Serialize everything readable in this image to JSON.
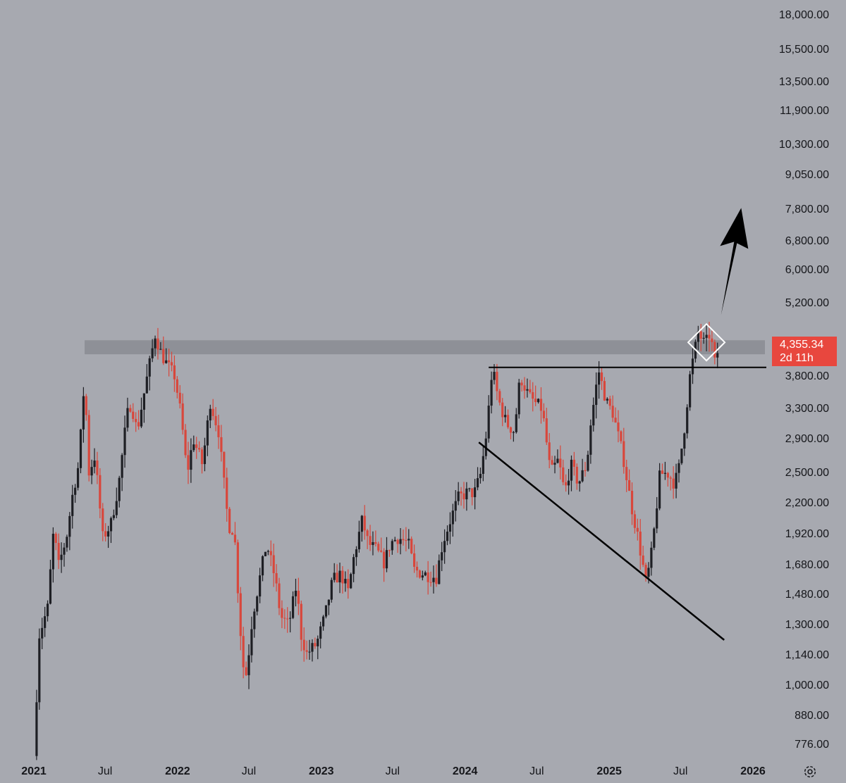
{
  "chart_data": {
    "type": "candlestick",
    "yscale": "log",
    "ylim": [
      720,
      19500
    ],
    "xlim": [
      "2021-01-01",
      "2026-01-20"
    ],
    "yticks": [
      18000,
      15500,
      13500,
      11900,
      10300,
      9050,
      7800,
      6800,
      6000,
      5200,
      3800,
      3300,
      2900,
      2500,
      2200,
      1920,
      1680,
      1480,
      1300,
      1140,
      1000,
      880,
      776
    ],
    "ytick_labels": [
      "18,000.00",
      "15,500.00",
      "13,500.00",
      "11,900.00",
      "10,300.00",
      "9,050.00",
      "7,800.00",
      "6,800.00",
      "6,000.00",
      "5,200.00",
      "3,800.00",
      "3,300.00",
      "2,900.00",
      "2,500.00",
      "2,200.00",
      "1,920.00",
      "1,680.00",
      "1,480.00",
      "1,300.00",
      "1,140.00",
      "1,000.00",
      "880.00",
      "776.00"
    ],
    "xticks": [
      {
        "date": "2021-01-01",
        "label": "2021",
        "year": true
      },
      {
        "date": "2021-07-01",
        "label": "Jul",
        "year": false
      },
      {
        "date": "2022-01-01",
        "label": "2022",
        "year": true
      },
      {
        "date": "2022-07-01",
        "label": "Jul",
        "year": false
      },
      {
        "date": "2023-01-01",
        "label": "2023",
        "year": true
      },
      {
        "date": "2023-07-01",
        "label": "Jul",
        "year": false
      },
      {
        "date": "2024-01-01",
        "label": "2024",
        "year": true
      },
      {
        "date": "2024-07-01",
        "label": "Jul",
        "year": false
      },
      {
        "date": "2025-01-01",
        "label": "2025",
        "year": true
      },
      {
        "date": "2025-07-01",
        "label": "Jul",
        "year": false
      },
      {
        "date": "2026-01-01",
        "label": "2026",
        "year": true
      }
    ],
    "close_path": [
      [
        "2021-01-01",
        740
      ],
      [
        "2021-01-15",
        1250
      ],
      [
        "2021-02-05",
        1400
      ],
      [
        "2021-02-20",
        1950
      ],
      [
        "2021-03-05",
        1680
      ],
      [
        "2021-03-25",
        1900
      ],
      [
        "2021-04-10",
        2300
      ],
      [
        "2021-04-25",
        2600
      ],
      [
        "2021-05-10",
        3800
      ],
      [
        "2021-05-20",
        2500
      ],
      [
        "2021-06-05",
        2700
      ],
      [
        "2021-06-25",
        1900
      ],
      [
        "2021-07-15",
        2000
      ],
      [
        "2021-08-05",
        2400
      ],
      [
        "2021-08-25",
        3200
      ],
      [
        "2021-09-05",
        3400
      ],
      [
        "2021-09-20",
        3000
      ],
      [
        "2021-10-10",
        3600
      ],
      [
        "2021-11-05",
        4550
      ],
      [
        "2021-11-20",
        4200
      ],
      [
        "2021-12-05",
        4000
      ],
      [
        "2021-12-25",
        3800
      ],
      [
        "2022-01-10",
        3200
      ],
      [
        "2022-01-25",
        2500
      ],
      [
        "2022-02-10",
        2900
      ],
      [
        "2022-03-05",
        2600
      ],
      [
        "2022-03-25",
        3400
      ],
      [
        "2022-04-15",
        3000
      ],
      [
        "2022-05-10",
        2000
      ],
      [
        "2022-05-25",
        1950
      ],
      [
        "2022-06-15",
        1100
      ],
      [
        "2022-06-25",
        1050
      ],
      [
        "2022-07-10",
        1350
      ],
      [
        "2022-08-05",
        1700
      ],
      [
        "2022-08-15",
        1850
      ],
      [
        "2022-09-05",
        1600
      ],
      [
        "2022-09-20",
        1350
      ],
      [
        "2022-10-10",
        1300
      ],
      [
        "2022-10-30",
        1550
      ],
      [
        "2022-11-10",
        1250
      ],
      [
        "2022-11-25",
        1150
      ],
      [
        "2022-12-20",
        1200
      ],
      [
        "2023-01-10",
        1350
      ],
      [
        "2023-01-30",
        1580
      ],
      [
        "2023-02-20",
        1620
      ],
      [
        "2023-03-10",
        1500
      ],
      [
        "2023-03-25",
        1750
      ],
      [
        "2023-04-15",
        2050
      ],
      [
        "2023-04-30",
        1850
      ],
      [
        "2023-05-20",
        1800
      ],
      [
        "2023-06-10",
        1700
      ],
      [
        "2023-06-25",
        1850
      ],
      [
        "2023-07-15",
        1900
      ],
      [
        "2023-08-10",
        1850
      ],
      [
        "2023-08-25",
        1650
      ],
      [
        "2023-09-20",
        1620
      ],
      [
        "2023-10-20",
        1600
      ],
      [
        "2023-11-05",
        1850
      ],
      [
        "2023-11-25",
        2050
      ],
      [
        "2023-12-15",
        2250
      ],
      [
        "2024-01-05",
        2300
      ],
      [
        "2024-01-25",
        2300
      ],
      [
        "2024-02-10",
        2500
      ],
      [
        "2024-02-25",
        3000
      ],
      [
        "2024-03-10",
        3950
      ],
      [
        "2024-03-25",
        3450
      ],
      [
        "2024-04-15",
        3100
      ],
      [
        "2024-05-05",
        3000
      ],
      [
        "2024-05-20",
        3800
      ],
      [
        "2024-06-10",
        3500
      ],
      [
        "2024-06-25",
        3400
      ],
      [
        "2024-07-15",
        3300
      ],
      [
        "2024-08-05",
        2500
      ],
      [
        "2024-08-25",
        2650
      ],
      [
        "2024-09-10",
        2300
      ],
      [
        "2024-09-25",
        2600
      ],
      [
        "2024-10-15",
        2400
      ],
      [
        "2024-11-05",
        2600
      ],
      [
        "2024-11-15",
        3100
      ],
      [
        "2024-12-05",
        3900
      ],
      [
        "2024-12-25",
        3400
      ],
      [
        "2025-01-10",
        3250
      ],
      [
        "2025-02-05",
        2700
      ],
      [
        "2025-02-25",
        2200
      ],
      [
        "2025-03-15",
        1900
      ],
      [
        "2025-04-05",
        1550
      ],
      [
        "2025-04-20",
        1800
      ],
      [
        "2025-05-10",
        2500
      ],
      [
        "2025-05-30",
        2500
      ],
      [
        "2025-06-15",
        2400
      ],
      [
        "2025-06-25",
        2500
      ],
      [
        "2025-07-10",
        3000
      ],
      [
        "2025-07-25",
        3800
      ],
      [
        "2025-08-15",
        4600
      ],
      [
        "2025-09-01",
        4350
      ],
      [
        "2025-09-15",
        4600
      ],
      [
        "2025-09-25",
        4000
      ],
      [
        "2025-10-08",
        4355
      ]
    ],
    "resistance_band": [
      4180,
      4440
    ],
    "neckline": {
      "price": 3950,
      "from": "2024-03-01",
      "to": "2026-01-20"
    },
    "trendline": {
      "from": [
        "2024-02-05",
        2860
      ],
      "to": [
        "2025-10-20",
        1220
      ]
    },
    "last_price": "4,355.34",
    "countdown": "2d 11h",
    "colors": {
      "background": "#a7a9b0",
      "up": "#1e1f24",
      "down": "#d8473c",
      "band": "#8e9097",
      "badge": "#e8473e",
      "annotation": "#000000"
    }
  }
}
